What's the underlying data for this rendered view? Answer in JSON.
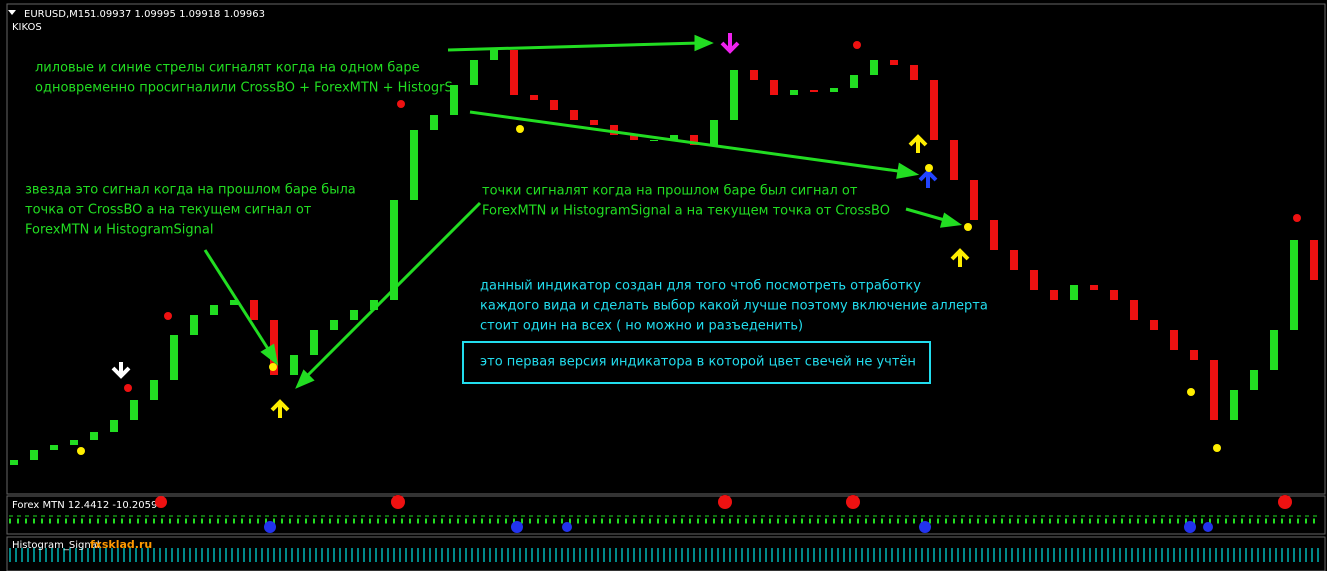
{
  "header": {
    "symbol": "EURUSD,M15",
    "prices": "1.09937 1.09995 1.09918 1.09963",
    "indicator": "KIKOS"
  },
  "annotations": [
    [
      "лиловые и синие стрелы сигналят когда на одном баре",
      "одновременно просигналили CrossBO + ForexMTN + HistogrS"
    ],
    [
      "звезда это сигнал когда на прошлом баре была",
      "точка от CrossBO а на текущем сигнал от",
      "ForexMTN и HistogramSignal"
    ],
    [
      "точки сигналят когда на прошлом баре был сигнал от",
      "ForexMTN и HistogramSignal а на текущем точка от CrossBO"
    ]
  ],
  "info": [
    "данный индикатор создан для того чтоб посмотреть отработку",
    "каждого вида и сделать выбор какой лучше поэтому включение аллерта",
    "стоит один на всех ( но можно и разъеденить)"
  ],
  "note": "это первая версия индикатора в которой цвет свечей не учтён",
  "panes": [
    {
      "label": "Forex MTN 12.4412 -10.2059"
    },
    {
      "label": "Histogram_Signal"
    }
  ],
  "watermark": "fxsklad.ru",
  "chart_data": {
    "type": "candlestick",
    "open": [
      25,
      30,
      40,
      45,
      50,
      58,
      70,
      90,
      110,
      155,
      175,
      185,
      190,
      170,
      115,
      135,
      160,
      170,
      180,
      190,
      290,
      360,
      375,
      405,
      430,
      440,
      395,
      390,
      380,
      370,
      365,
      355,
      350,
      350,
      355,
      345,
      370,
      420,
      410,
      395,
      400,
      398,
      402,
      415,
      430,
      425,
      410,
      350,
      310,
      270,
      240,
      220,
      200,
      190,
      205,
      200,
      190,
      170,
      160,
      140,
      130,
      70,
      100,
      120,
      160,
      250
    ],
    "close": [
      30,
      40,
      45,
      50,
      58,
      70,
      90,
      110,
      155,
      175,
      185,
      190,
      170,
      115,
      135,
      160,
      170,
      180,
      190,
      290,
      360,
      375,
      405,
      430,
      440,
      395,
      390,
      380,
      370,
      365,
      355,
      350,
      350,
      355,
      345,
      370,
      420,
      410,
      395,
      400,
      398,
      402,
      415,
      430,
      425,
      410,
      350,
      310,
      270,
      240,
      220,
      200,
      190,
      205,
      200,
      190,
      170,
      160,
      140,
      130,
      70,
      100,
      120,
      160,
      250,
      210
    ],
    "ylim": [
      0,
      470
    ]
  }
}
